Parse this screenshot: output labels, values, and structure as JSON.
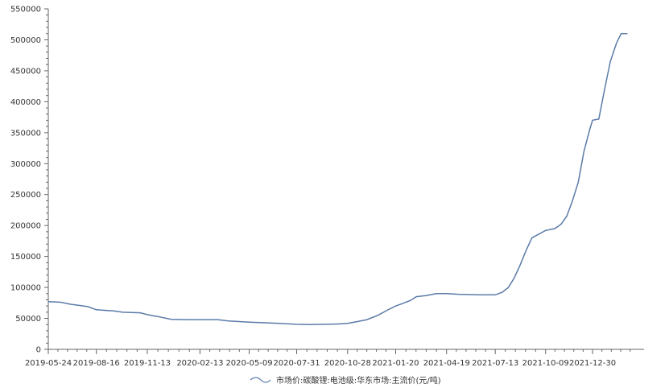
{
  "chart_data": {
    "type": "line",
    "ylim": [
      0,
      550000
    ],
    "xlim": [
      "2019-05-24",
      "2022-03-30"
    ],
    "y_ticks": [
      0,
      50000,
      100000,
      150000,
      200000,
      250000,
      300000,
      350000,
      400000,
      450000,
      500000,
      550000
    ],
    "y_tick_labels": [
      "0",
      "50000",
      "100000",
      "150000",
      "200000",
      "250000",
      "300000",
      "350000",
      "400000",
      "450000",
      "500000",
      "550000"
    ],
    "x_ticks": [
      "2019-05-24",
      "2019-08-16",
      "2019-11-13",
      "2020-02-13",
      "2020-05-09",
      "2020-07-31",
      "2020-10-28",
      "2021-01-20",
      "2021-04-19",
      "2021-07-13",
      "2021-10-09",
      "2021-12-30"
    ],
    "grid": false,
    "legend_position": "bottom-center",
    "colors": {
      "line": "#5b7ba8",
      "axis": "#666666"
    },
    "series": [
      {
        "name": "市场价:碳酸锂:电池级:华东市场:主流价(元/吨)",
        "points": [
          [
            "2019-05-24",
            77000
          ],
          [
            "2019-06-15",
            76000
          ],
          [
            "2019-07-01",
            73000
          ],
          [
            "2019-08-01",
            69000
          ],
          [
            "2019-08-16",
            64000
          ],
          [
            "2019-09-15",
            62000
          ],
          [
            "2019-10-01",
            60000
          ],
          [
            "2019-11-01",
            59000
          ],
          [
            "2019-11-13",
            56000
          ],
          [
            "2019-12-01",
            53000
          ],
          [
            "2019-12-25",
            48500
          ],
          [
            "2020-01-20",
            48000
          ],
          [
            "2020-02-13",
            48000
          ],
          [
            "2020-03-15",
            48000
          ],
          [
            "2020-04-01",
            46000
          ],
          [
            "2020-05-09",
            44000
          ],
          [
            "2020-06-01",
            43000
          ],
          [
            "2020-07-01",
            42000
          ],
          [
            "2020-07-31",
            40500
          ],
          [
            "2020-08-20",
            40000
          ],
          [
            "2020-09-20",
            40500
          ],
          [
            "2020-10-10",
            41000
          ],
          [
            "2020-10-28",
            42000
          ],
          [
            "2020-11-15",
            45000
          ],
          [
            "2020-12-01",
            48000
          ],
          [
            "2020-12-20",
            55000
          ],
          [
            "2021-01-05",
            63000
          ],
          [
            "2021-01-20",
            70000
          ],
          [
            "2021-02-01",
            74000
          ],
          [
            "2021-02-15",
            79000
          ],
          [
            "2021-02-25",
            85000
          ],
          [
            "2021-03-15",
            87000
          ],
          [
            "2021-04-01",
            90000
          ],
          [
            "2021-04-19",
            90000
          ],
          [
            "2021-05-10",
            89000
          ],
          [
            "2021-06-15",
            88000
          ],
          [
            "2021-07-13",
            88000
          ],
          [
            "2021-07-25",
            92000
          ],
          [
            "2021-08-05",
            100000
          ],
          [
            "2021-08-15",
            115000
          ],
          [
            "2021-08-25",
            135000
          ],
          [
            "2021-09-05",
            160000
          ],
          [
            "2021-09-15",
            180000
          ],
          [
            "2021-09-25",
            185000
          ],
          [
            "2021-10-09",
            192000
          ],
          [
            "2021-10-25",
            195000
          ],
          [
            "2021-11-05",
            202000
          ],
          [
            "2021-11-15",
            215000
          ],
          [
            "2021-11-25",
            240000
          ],
          [
            "2021-12-05",
            270000
          ],
          [
            "2021-12-15",
            320000
          ],
          [
            "2021-12-25",
            355000
          ],
          [
            "2021-12-30",
            370000
          ],
          [
            "2022-01-10",
            372000
          ],
          [
            "2022-01-20",
            420000
          ],
          [
            "2022-01-30",
            465000
          ],
          [
            "2022-02-10",
            495000
          ],
          [
            "2022-02-18",
            510000
          ],
          [
            "2022-03-01",
            510000
          ]
        ]
      }
    ]
  }
}
